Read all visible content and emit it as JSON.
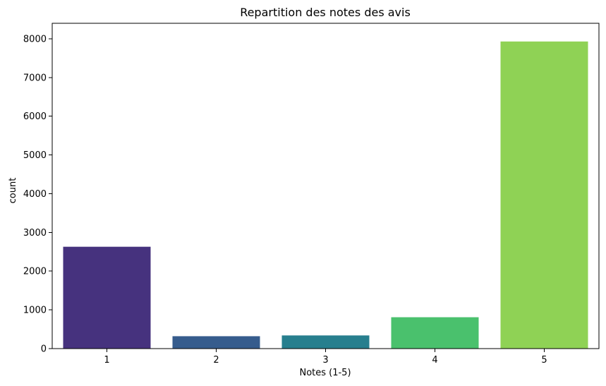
{
  "chart_data": {
    "type": "bar",
    "title": "Repartition des notes des avis",
    "xlabel": "Notes (1-5)",
    "ylabel": "count",
    "categories": [
      "1",
      "2",
      "3",
      "4",
      "5"
    ],
    "values": [
      2630,
      320,
      340,
      810,
      7930
    ],
    "colors": [
      "#46327e",
      "#365c8d",
      "#277f8e",
      "#4ac16d",
      "#8fd255"
    ],
    "ylim": [
      0,
      8400
    ],
    "yticks": [
      0,
      1000,
      2000,
      3000,
      4000,
      5000,
      6000,
      7000,
      8000
    ],
    "ytick_labels": [
      "0",
      "1000",
      "2000",
      "3000",
      "4000",
      "5000",
      "6000",
      "7000",
      "8000"
    ],
    "grid": false,
    "legend": "none"
  }
}
